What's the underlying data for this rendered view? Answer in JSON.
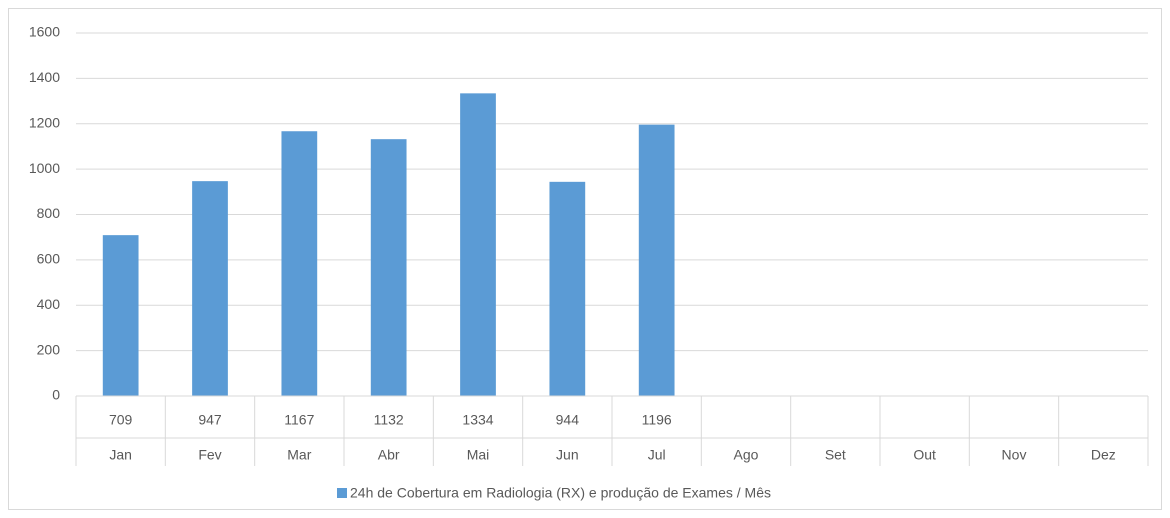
{
  "chart_data": {
    "type": "bar",
    "categories": [
      "Jan",
      "Fev",
      "Mar",
      "Abr",
      "Mai",
      "Jun",
      "Jul",
      "Ago",
      "Set",
      "Out",
      "Nov",
      "Dez"
    ],
    "series": [
      {
        "name": "24h de Cobertura em Radiologia (RX) e produção de Exames / Mês",
        "color": "#5b9bd5",
        "values": [
          709,
          947,
          1167,
          1132,
          1334,
          944,
          1196,
          null,
          null,
          null,
          null,
          null
        ]
      }
    ],
    "ylim": [
      0,
      1600
    ],
    "yticks": [
      0,
      200,
      400,
      600,
      800,
      1000,
      1200,
      1400,
      1600
    ],
    "grid": true
  }
}
